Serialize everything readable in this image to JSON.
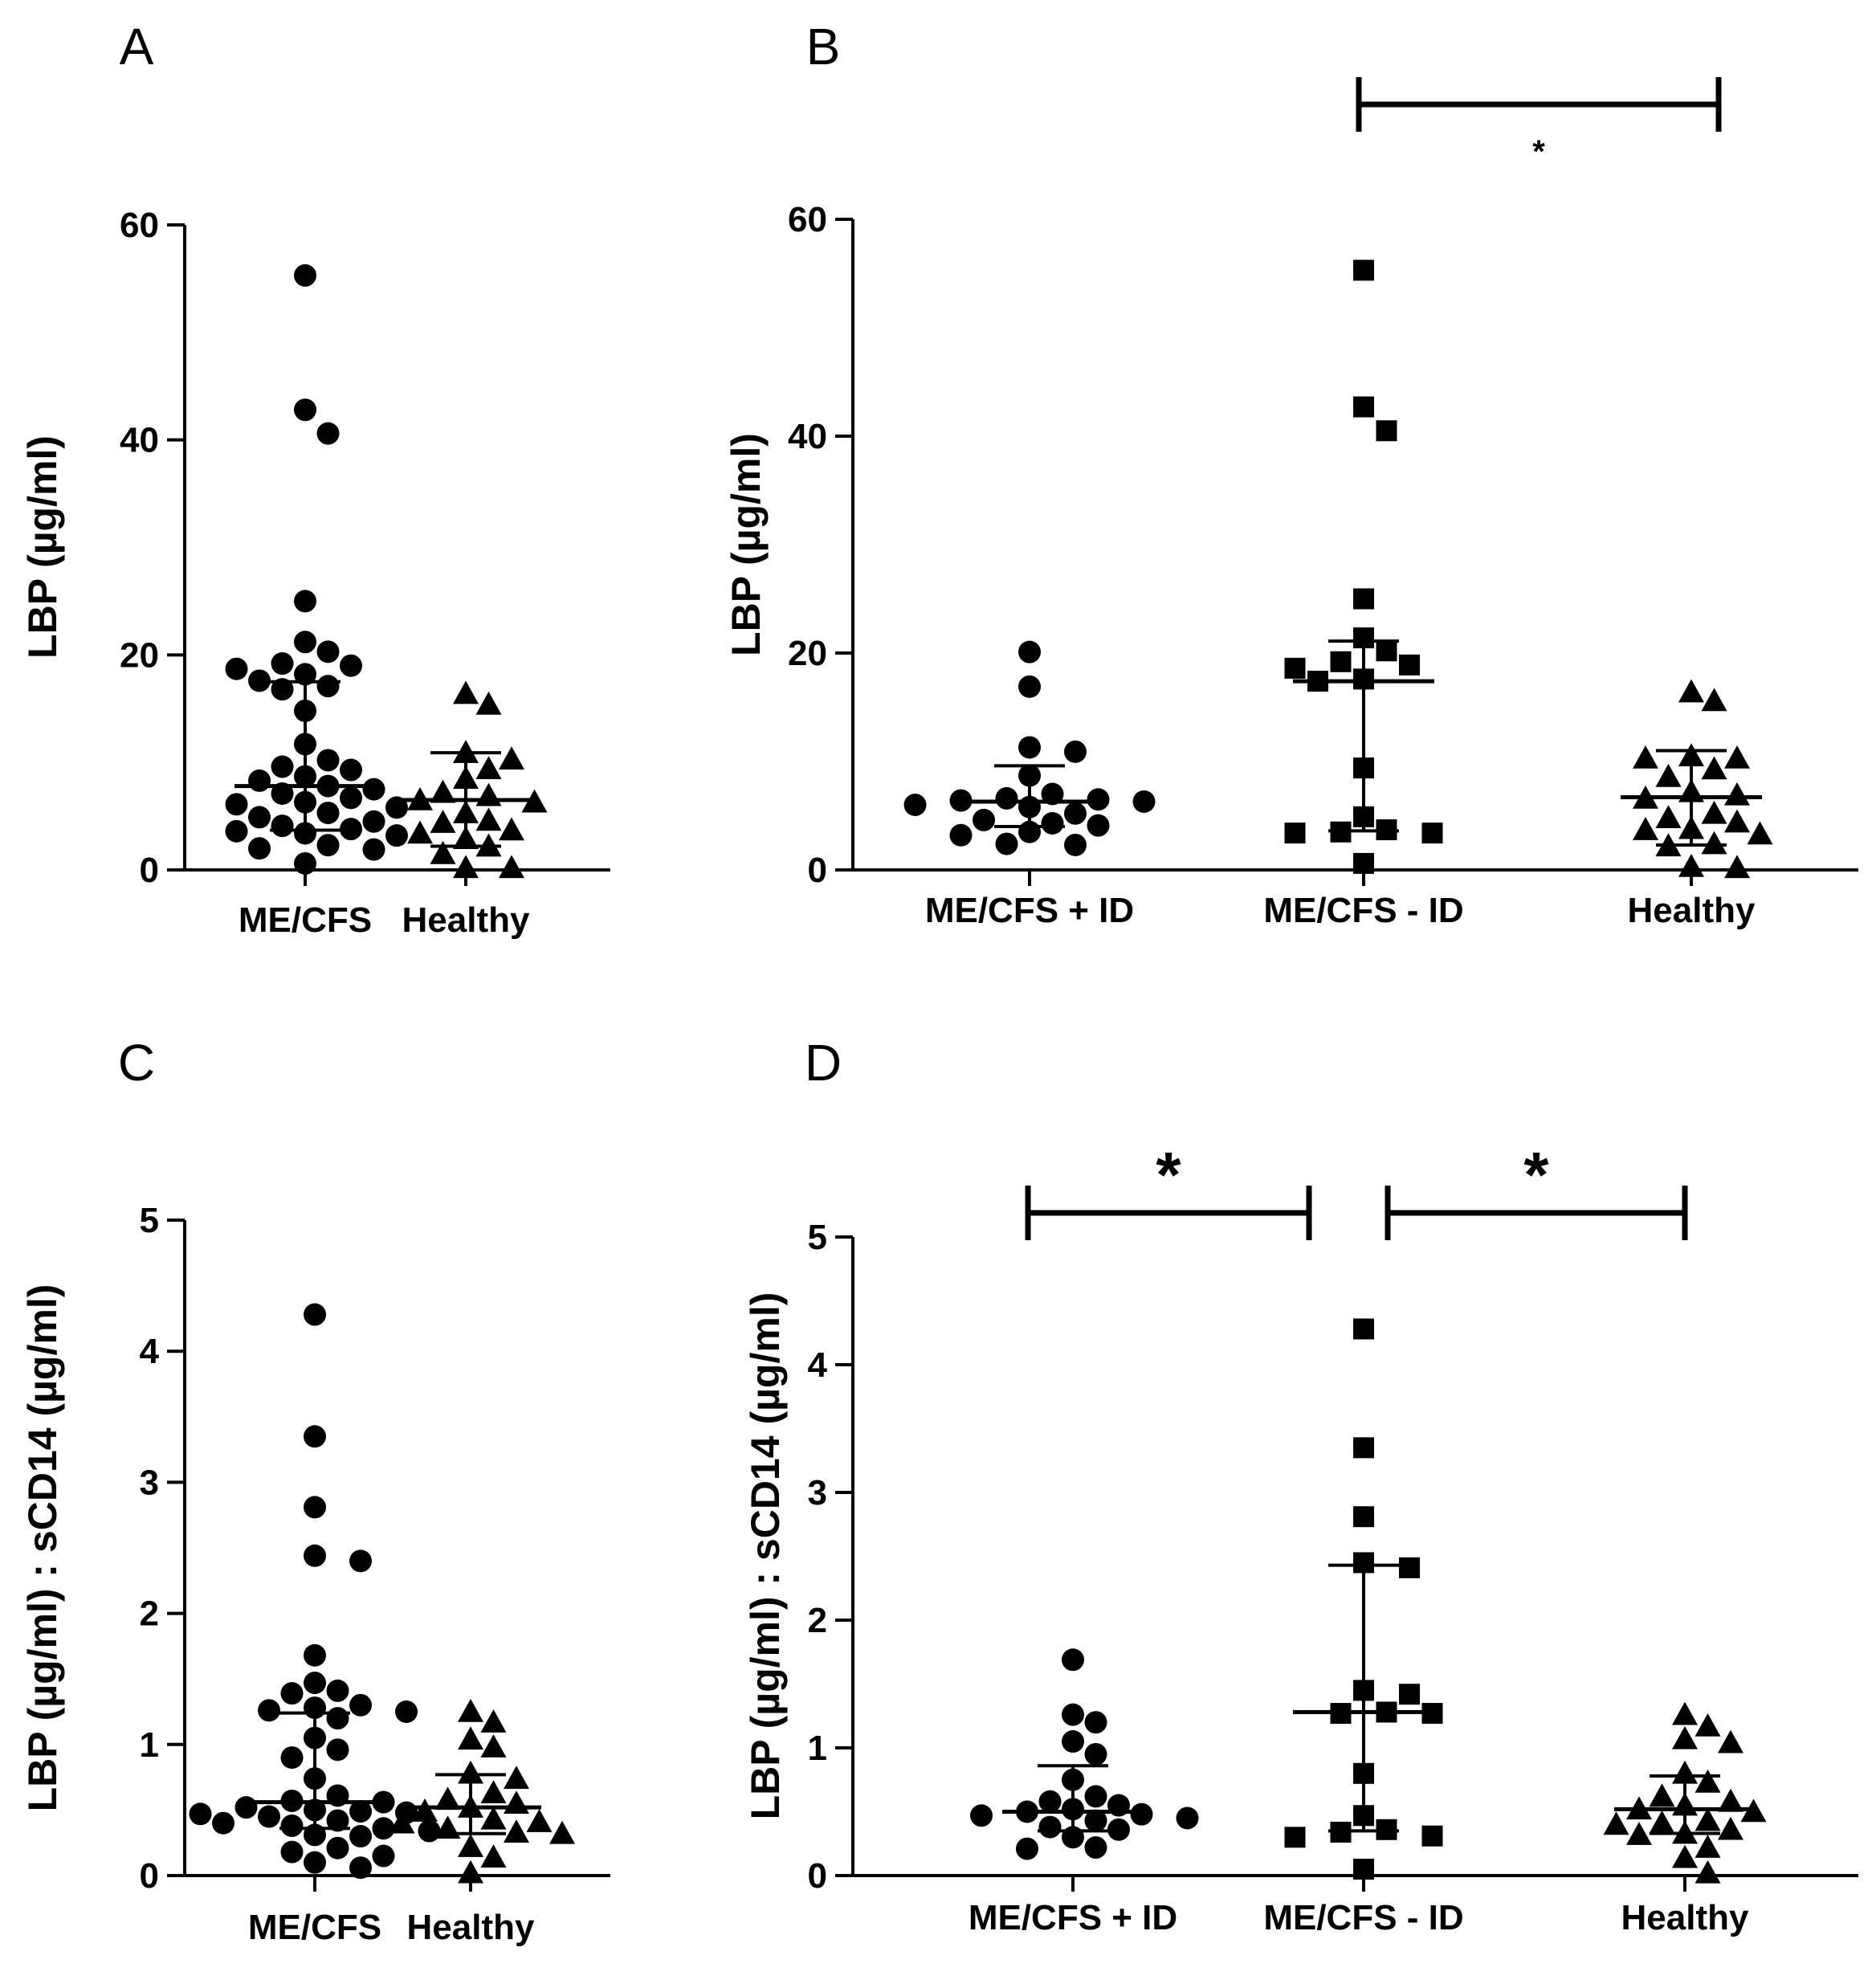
{
  "chart_data": [
    {
      "panel": "A",
      "type": "scatter",
      "ylabel": "LBP (µg/ml)",
      "ylim": [
        0,
        60
      ],
      "yticks": [
        "0",
        "20",
        "40",
        "60"
      ],
      "categories": [
        "ME/CFS",
        "Healthy"
      ],
      "series": [
        {
          "name": "ME/CFS",
          "marker": "circle",
          "median": 7.8,
          "q1": 3.7,
          "q3": 17.5,
          "values": [
            55.3,
            42.8,
            40.6,
            25.0,
            21.2,
            20.3,
            19.2,
            19.0,
            18.7,
            18.2,
            17.6,
            17.1,
            16.8,
            14.8,
            11.7,
            10.2,
            9.6,
            9.3,
            8.7,
            8.3,
            7.8,
            7.5,
            7.1,
            6.7,
            6.3,
            6.1,
            5.8,
            5.3,
            4.9,
            4.5,
            4.1,
            3.8,
            3.6,
            3.4,
            3.2,
            2.3,
            2.0,
            1.9,
            0.6
          ]
        },
        {
          "name": "Healthy",
          "marker": "triangle",
          "median": 6.5,
          "q1": 2.2,
          "q3": 10.9,
          "values": [
            16.4,
            15.4,
            10.9,
            10.3,
            9.4,
            8.5,
            7.2,
            6.9,
            6.5,
            6.3,
            5.3,
            4.6,
            4.4,
            3.7,
            3.4,
            2.9,
            2.2,
            1.5,
            0.2,
            0.2
          ]
        }
      ]
    },
    {
      "panel": "B",
      "type": "scatter",
      "ylabel": "LBP (µg/ml)",
      "ylim": [
        0,
        60
      ],
      "yticks": [
        "0",
        "20",
        "40",
        "60"
      ],
      "categories": [
        "ME/CFS + ID",
        "ME/CFS - ID",
        "Healthy"
      ],
      "significance": [
        {
          "from": 1,
          "to": 2,
          "label": "*"
        }
      ],
      "series": [
        {
          "name": "ME/CFS + ID",
          "marker": "circle",
          "median": 6.3,
          "q1": 4.0,
          "q3": 9.6,
          "values": [
            20.1,
            16.9,
            11.3,
            10.9,
            8.7,
            7.0,
            6.6,
            6.5,
            6.4,
            6.3,
            6.0,
            5.8,
            5.2,
            4.6,
            4.3,
            4.1,
            3.5,
            3.2,
            2.4,
            2.3
          ]
        },
        {
          "name": "ME/CFS - ID",
          "marker": "square",
          "median": 17.4,
          "q1": 3.6,
          "q3": 21.1,
          "values": [
            55.3,
            42.7,
            40.5,
            25.0,
            21.4,
            20.2,
            19.2,
            18.9,
            18.6,
            17.6,
            17.4,
            9.4,
            4.9,
            3.7,
            3.5,
            3.4,
            3.4,
            0.6
          ]
        },
        {
          "name": "Healthy",
          "marker": "triangle",
          "median": 6.7,
          "q1": 2.3,
          "q3": 11.0,
          "values": [
            16.4,
            15.6,
            10.5,
            10.3,
            10.3,
            9.3,
            8.6,
            7.2,
            6.9,
            6.6,
            5.2,
            4.8,
            4.4,
            3.8,
            3.7,
            3.3,
            2.4,
            2.2,
            0.3,
            0.2
          ]
        }
      ]
    },
    {
      "panel": "C",
      "type": "scatter",
      "ylabel": "LBP (µg/ml) : sCD14 (µg/ml)",
      "ylim": [
        0,
        5
      ],
      "yticks": [
        "0",
        "1",
        "2",
        "3",
        "4",
        "5"
      ],
      "categories": [
        "ME/CFS",
        "Healthy"
      ],
      "series": [
        {
          "name": "ME/CFS",
          "marker": "circle",
          "median": 0.56,
          "q1": 0.36,
          "q3": 1.24,
          "values": [
            4.28,
            3.35,
            2.81,
            2.44,
            2.4,
            1.68,
            1.47,
            1.41,
            1.39,
            1.3,
            1.28,
            1.26,
            1.25,
            1.2,
            1.05,
            0.96,
            0.9,
            0.74,
            0.61,
            0.57,
            0.56,
            0.52,
            0.5,
            0.49,
            0.48,
            0.47,
            0.45,
            0.42,
            0.4,
            0.38,
            0.36,
            0.34,
            0.31,
            0.3,
            0.21,
            0.18,
            0.15,
            0.1,
            0.06
          ]
        },
        {
          "name": "Healthy",
          "marker": "triangle",
          "median": 0.52,
          "q1": 0.32,
          "q3": 0.77,
          "values": [
            1.25,
            1.17,
            1.04,
            0.98,
            0.78,
            0.74,
            0.63,
            0.58,
            0.55,
            0.52,
            0.49,
            0.43,
            0.41,
            0.4,
            0.36,
            0.33,
            0.32,
            0.22,
            0.14,
            0.02
          ]
        }
      ]
    },
    {
      "panel": "D",
      "type": "scatter",
      "ylabel": "LBP (µg/ml) : sCD14 (µg/ml)",
      "ylim": [
        0,
        5
      ],
      "yticks": [
        "0",
        "1",
        "2",
        "3",
        "4",
        "5"
      ],
      "categories": [
        "ME/CFS + ID",
        "ME/CFS - ID",
        "Healthy"
      ],
      "significance": [
        {
          "from": 0,
          "to": 1,
          "label": "*"
        },
        {
          "from": 1,
          "to": 2,
          "label": "*"
        }
      ],
      "series": [
        {
          "name": "ME/CFS + ID",
          "marker": "circle",
          "median": 0.5,
          "q1": 0.35,
          "q3": 0.86,
          "values": [
            1.69,
            1.26,
            1.2,
            1.05,
            0.95,
            0.75,
            0.62,
            0.58,
            0.55,
            0.52,
            0.5,
            0.48,
            0.47,
            0.45,
            0.43,
            0.38,
            0.36,
            0.3,
            0.22,
            0.21
          ]
        },
        {
          "name": "ME/CFS - ID",
          "marker": "square",
          "median": 1.28,
          "q1": 0.35,
          "q3": 2.43,
          "values": [
            4.28,
            3.35,
            2.81,
            2.45,
            2.41,
            1.45,
            1.42,
            1.28,
            1.27,
            1.27,
            0.8,
            0.47,
            0.36,
            0.34,
            0.31,
            0.3,
            0.05
          ]
        },
        {
          "name": "Healthy",
          "marker": "triangle",
          "median": 0.52,
          "q1": 0.33,
          "q3": 0.78,
          "values": [
            1.26,
            1.17,
            1.07,
            1.04,
            0.8,
            0.73,
            0.62,
            0.58,
            0.55,
            0.52,
            0.5,
            0.43,
            0.41,
            0.4,
            0.36,
            0.33,
            0.32,
            0.22,
            0.14,
            0.02
          ]
        }
      ]
    }
  ]
}
